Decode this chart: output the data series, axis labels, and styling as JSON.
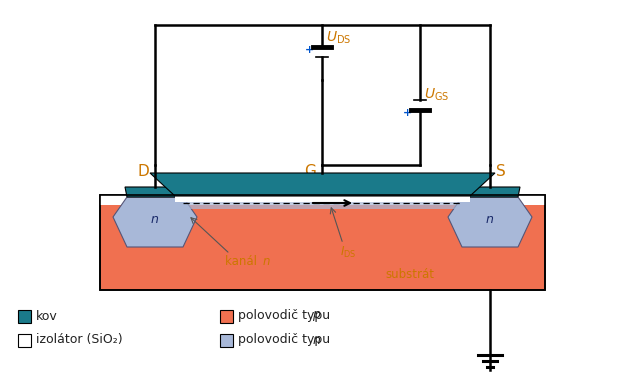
{
  "bg_color": "#ffffff",
  "metal_color": "#1a7a8a",
  "p_substrate_color": "#f07050",
  "n_region_color": "#a8b8d8",
  "wire_color": "#000000",
  "plus_color": "#0055cc",
  "orange_color": "#cc7700",
  "text_dark": "#222222",
  "legend_kov": "kov",
  "legend_izolator": "izolátor (SiO₂)",
  "legend_p": "polovodič typu ",
  "legend_n": "polovodič typu "
}
